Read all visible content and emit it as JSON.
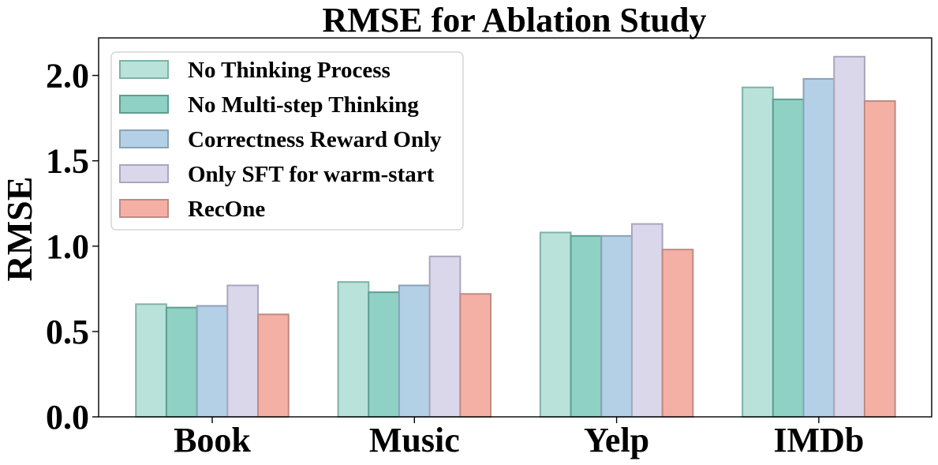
{
  "chart_data": {
    "type": "bar",
    "title": "RMSE for Ablation Study",
    "xlabel": "",
    "ylabel": "RMSE",
    "ylim": [
      0,
      2.22
    ],
    "yticks": [
      0.0,
      0.5,
      1.0,
      1.5,
      2.0
    ],
    "ytick_labels": [
      "0.0",
      "0.5",
      "1.0",
      "1.5",
      "2.0"
    ],
    "categories": [
      "Book",
      "Music",
      "Yelp",
      "IMDb"
    ],
    "legend_position": "upper-left",
    "series": [
      {
        "name": "No Thinking Process",
        "values": [
          0.66,
          0.79,
          1.08,
          1.93
        ],
        "color": "#b9e2da",
        "edge": "#7fb2a6"
      },
      {
        "name": "No Multi-step Thinking",
        "values": [
          0.64,
          0.73,
          1.06,
          1.86
        ],
        "color": "#8fd1c4",
        "edge": "#5e9e91"
      },
      {
        "name": "Correctness Reward Only",
        "values": [
          0.65,
          0.77,
          1.06,
          1.98
        ],
        "color": "#b3d0e7",
        "edge": "#8aa2b8"
      },
      {
        "name": "Only SFT for warm-start",
        "values": [
          0.77,
          0.94,
          1.13,
          2.11
        ],
        "color": "#dad7ea",
        "edge": "#a9a6be"
      },
      {
        "name": "RecOne",
        "values": [
          0.6,
          0.72,
          0.98,
          1.85
        ],
        "color": "#f5b0a6",
        "edge": "#c08a82"
      }
    ]
  }
}
